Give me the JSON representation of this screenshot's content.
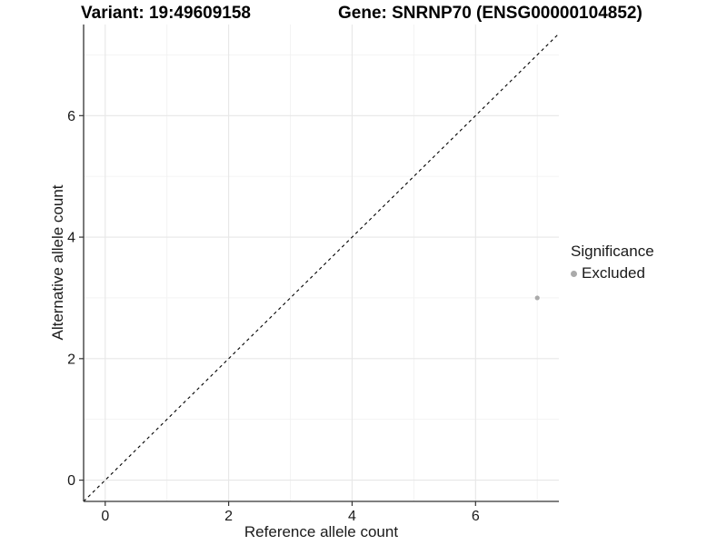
{
  "chart_data": {
    "type": "scatter",
    "title_left": "Variant: 19:49609158",
    "title_right": "Gene: SNRNP70 (ENSG00000104852)",
    "xlabel": "Reference allele count",
    "ylabel": "Alternative allele count",
    "xlim": [
      -0.35,
      7.35
    ],
    "ylim": [
      -0.35,
      7.5
    ],
    "major_ticks": [
      0,
      2,
      4,
      6
    ],
    "minor_ticks": [
      1,
      3,
      5,
      7
    ],
    "points": [
      {
        "x": 7,
        "y": 3,
        "series": "Excluded"
      }
    ],
    "abline": {
      "slope": 1,
      "intercept": 0,
      "style": "dashed"
    },
    "legend": {
      "title": "Significance",
      "position": "right",
      "items": [
        {
          "label": "Excluded",
          "color": "#aaaaaa"
        }
      ]
    },
    "colors": {
      "point": "#aaaaaa",
      "grid_major": "#e7e7e7",
      "grid_minor": "#f2f2f2",
      "axis": "#333333",
      "abline": "#000000",
      "tick_text": "#1a1a1a"
    },
    "grid": true,
    "background": "#ffffff"
  }
}
